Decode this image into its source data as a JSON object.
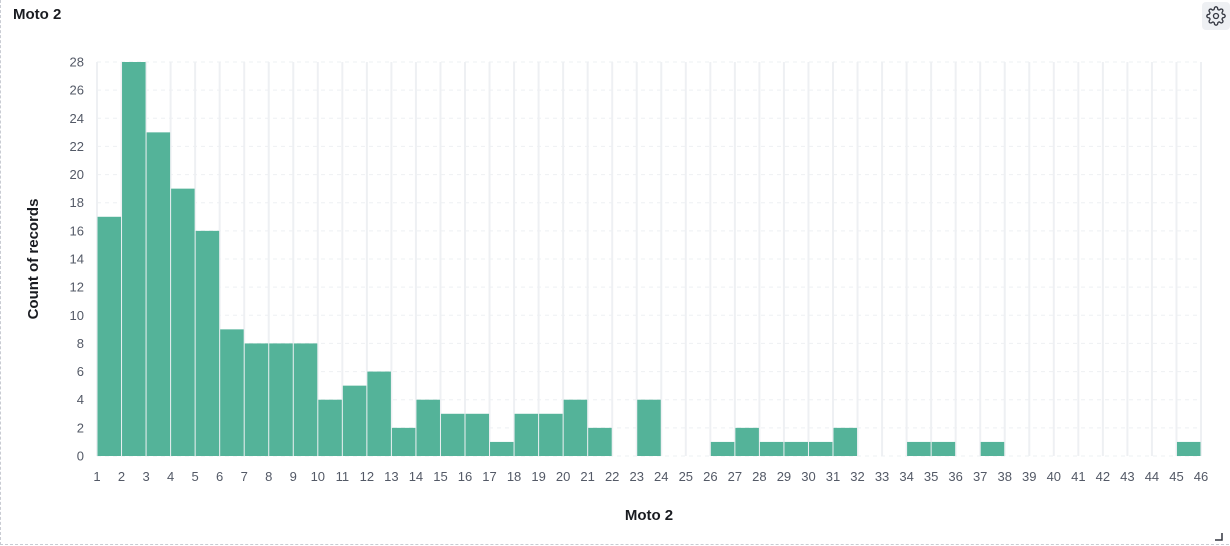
{
  "panel": {
    "title": "Moto 2",
    "settings_icon": "gear-icon"
  },
  "colors": {
    "bar": "#54b399",
    "grid": "#eef0f3",
    "text": "#535966",
    "title": "#1a1c21"
  },
  "chart_data": {
    "type": "bar",
    "title": "Moto 2",
    "xlabel": "Moto 2",
    "ylabel": "Count of records",
    "x_ticks": [
      1,
      2,
      3,
      4,
      5,
      6,
      7,
      8,
      9,
      10,
      11,
      12,
      13,
      14,
      15,
      16,
      17,
      18,
      19,
      20,
      21,
      22,
      23,
      24,
      25,
      26,
      27,
      28,
      29,
      30,
      31,
      32,
      33,
      34,
      35,
      36,
      37,
      38,
      39,
      40,
      41,
      42,
      43,
      44,
      45,
      46
    ],
    "bins": [
      {
        "start": 1,
        "value": 17
      },
      {
        "start": 2,
        "value": 28
      },
      {
        "start": 3,
        "value": 23
      },
      {
        "start": 4,
        "value": 19
      },
      {
        "start": 5,
        "value": 16
      },
      {
        "start": 6,
        "value": 9
      },
      {
        "start": 7,
        "value": 8
      },
      {
        "start": 8,
        "value": 8
      },
      {
        "start": 9,
        "value": 8
      },
      {
        "start": 10,
        "value": 4
      },
      {
        "start": 11,
        "value": 5
      },
      {
        "start": 12,
        "value": 6
      },
      {
        "start": 13,
        "value": 2
      },
      {
        "start": 14,
        "value": 4
      },
      {
        "start": 15,
        "value": 3
      },
      {
        "start": 16,
        "value": 3
      },
      {
        "start": 17,
        "value": 1
      },
      {
        "start": 18,
        "value": 3
      },
      {
        "start": 19,
        "value": 3
      },
      {
        "start": 20,
        "value": 4
      },
      {
        "start": 21,
        "value": 2
      },
      {
        "start": 22,
        "value": 0
      },
      {
        "start": 23,
        "value": 4
      },
      {
        "start": 24,
        "value": 0
      },
      {
        "start": 25,
        "value": 0
      },
      {
        "start": 26,
        "value": 1
      },
      {
        "start": 27,
        "value": 2
      },
      {
        "start": 28,
        "value": 1
      },
      {
        "start": 29,
        "value": 1
      },
      {
        "start": 30,
        "value": 1
      },
      {
        "start": 31,
        "value": 2
      },
      {
        "start": 32,
        "value": 0
      },
      {
        "start": 33,
        "value": 0
      },
      {
        "start": 34,
        "value": 1
      },
      {
        "start": 35,
        "value": 1
      },
      {
        "start": 36,
        "value": 0
      },
      {
        "start": 37,
        "value": 1
      },
      {
        "start": 38,
        "value": 0
      },
      {
        "start": 39,
        "value": 0
      },
      {
        "start": 40,
        "value": 0
      },
      {
        "start": 41,
        "value": 0
      },
      {
        "start": 42,
        "value": 0
      },
      {
        "start": 43,
        "value": 0
      },
      {
        "start": 44,
        "value": 0
      },
      {
        "start": 45,
        "value": 1
      }
    ],
    "y_ticks": [
      0,
      2,
      4,
      6,
      8,
      10,
      12,
      14,
      16,
      18,
      20,
      22,
      24,
      26,
      28
    ],
    "ylim": [
      0,
      28
    ],
    "xlim": [
      1,
      46
    ],
    "grid": true,
    "legend": "none"
  }
}
